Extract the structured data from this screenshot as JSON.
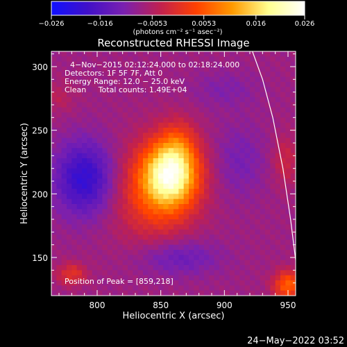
{
  "chart_data": {
    "type": "heatmap",
    "title": "Reconstructed RHESSI Image",
    "xlabel": "Heliocentric X (arcsec)",
    "ylabel": "Heliocentric Y (arcsec)",
    "xlim": [
      764,
      956
    ],
    "ylim": [
      120,
      312
    ],
    "x_ticks": [
      800,
      850,
      900,
      950
    ],
    "y_ticks": [
      150,
      200,
      250,
      300
    ],
    "colorbar": {
      "range": [
        -0.026,
        0.026
      ],
      "tick_values": [
        -0.026,
        -0.016,
        -0.0053,
        0.0053,
        0.016,
        0.026
      ],
      "tick_labels": [
        "−0.026",
        "−0.016",
        "−0.0053",
        "0.0053",
        "0.016",
        "0.026"
      ],
      "units_text": "(photons cm⁻² s⁻¹ asec⁻²)",
      "colors": [
        "#1010ff",
        "#4010c8",
        "#7a20b0",
        "#c02050",
        "#ff4000",
        "#ff9a00",
        "#ffff90",
        "#ffffff"
      ]
    },
    "annotations": [
      "4−Nov−2015 02:12:24.000 to 02:18:24.000",
      "Detectors: 1F 5F 7F, Att 0",
      "Energy Range: 12.0 − 25.0 keV",
      "Clean     Total counts: 1.49E+04"
    ],
    "peak_label": "Position of Peak = [859,218]",
    "peak": [
      859,
      218
    ],
    "sources": [
      {
        "x": 858,
        "y": 216,
        "amp": 0.026,
        "sx": 15,
        "sy": 18
      },
      {
        "x": 845,
        "y": 200,
        "amp": 0.01,
        "sx": 22,
        "sy": 26
      },
      {
        "x": 864,
        "y": 240,
        "amp": 0.006,
        "sx": 10,
        "sy": 14
      },
      {
        "x": 950,
        "y": 128,
        "amp": 0.014,
        "sx": 8,
        "sy": 8
      },
      {
        "x": 780,
        "y": 137,
        "amp": 0.008,
        "sx": 8,
        "sy": 6
      },
      {
        "x": 948,
        "y": 226,
        "amp": 0.005,
        "sx": 7,
        "sy": 14
      },
      {
        "x": 770,
        "y": 276,
        "amp": 0.003,
        "sx": 9,
        "sy": 9
      },
      {
        "x": 790,
        "y": 212,
        "amp": -0.013,
        "sx": 16,
        "sy": 20
      },
      {
        "x": 912,
        "y": 226,
        "amp": -0.004,
        "sx": 14,
        "sy": 20
      },
      {
        "x": 864,
        "y": 150,
        "amp": -0.006,
        "sx": 22,
        "sy": 10
      },
      {
        "x": 900,
        "y": 282,
        "amp": -0.003,
        "sx": 18,
        "sy": 10
      }
    ],
    "limb_curve": [
      [
        922,
        312
      ],
      [
        930,
        290
      ],
      [
        938,
        260
      ],
      [
        946,
        220
      ],
      [
        952,
        180
      ],
      [
        956,
        148
      ]
    ],
    "grid": false
  },
  "footer": {
    "date": "24−May−2022 03:52"
  }
}
